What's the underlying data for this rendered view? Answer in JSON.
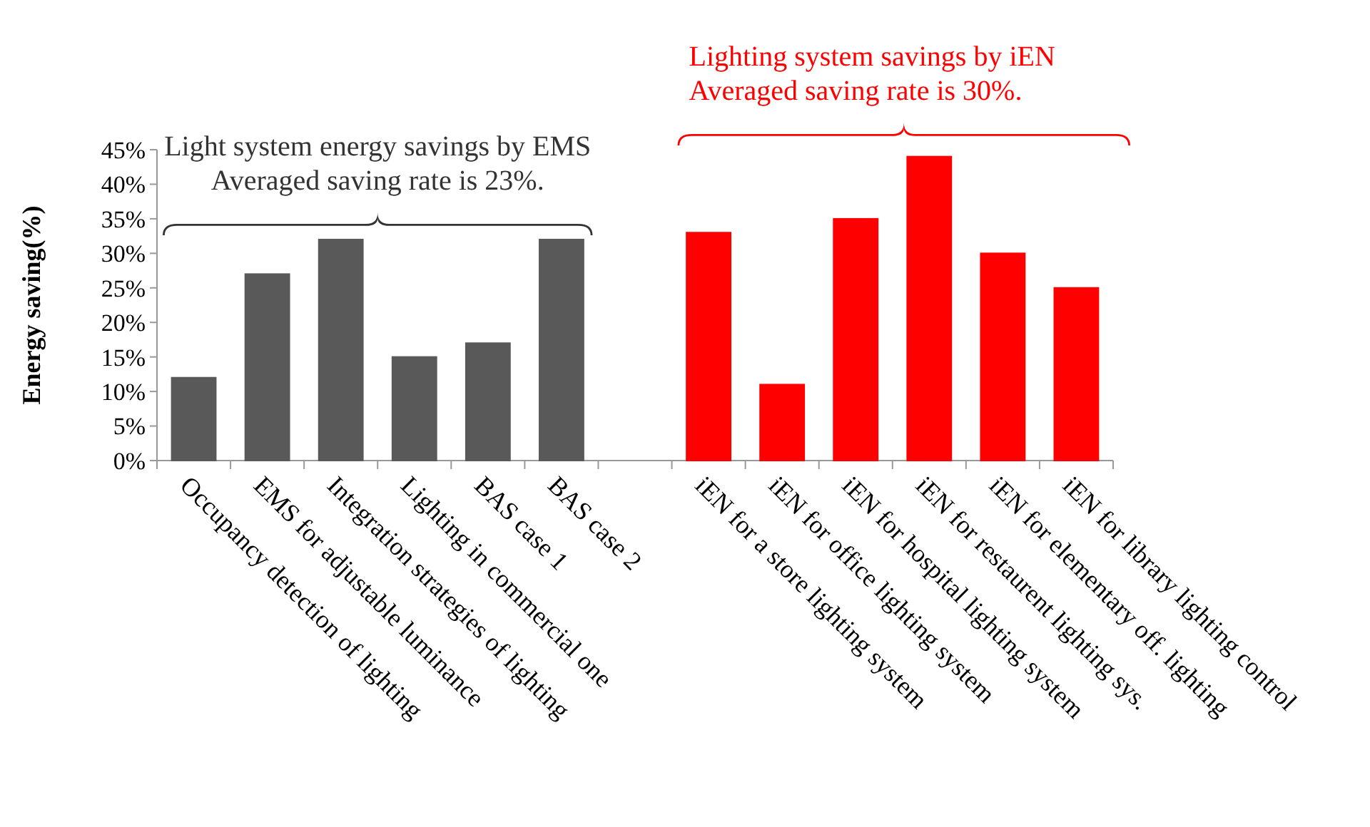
{
  "chart_data": {
    "type": "bar",
    "ylabel": "Energy saving(%)",
    "categories": [
      "Occupancy detection of lighting",
      "EMS for adjustable luminance",
      "Integration strategies of lighting",
      "Lighting in commercial one",
      "BAS case 1",
      "BAS case 2",
      null,
      "iEN for a store lighting system",
      "iEN for office lighting system",
      "iEN for hospital lighting system",
      "iEN for restaurent lighting sys.",
      "iEN for elementary off. lighting",
      "iEN for library lighting control"
    ],
    "values": [
      12,
      27,
      32,
      15,
      17,
      32,
      null,
      33,
      11,
      35,
      44,
      30,
      25
    ],
    "colors": [
      "#595959",
      "#595959",
      "#595959",
      "#595959",
      "#595959",
      "#595959",
      null,
      "#ff0000",
      "#ff0000",
      "#ff0000",
      "#ff0000",
      "#ff0000",
      "#ff0000"
    ],
    "ylim": [
      0,
      45
    ],
    "yticks": [
      {
        "value": 0,
        "label": "0%"
      },
      {
        "value": 5,
        "label": "5%"
      },
      {
        "value": 10,
        "label": "10%"
      },
      {
        "value": 15,
        "label": "15%"
      },
      {
        "value": 20,
        "label": "20%"
      },
      {
        "value": 25,
        "label": "25%"
      },
      {
        "value": 30,
        "label": "30%"
      },
      {
        "value": 35,
        "label": "35%"
      },
      {
        "value": 40,
        "label": "40%"
      },
      {
        "value": 45,
        "label": "45%"
      }
    ],
    "annotations": [
      "Light system energy savings by EMS",
      "Averaged saving rate is 23%.",
      "Lighting system savings by iEN",
      "Averaged saving rate is 30%."
    ]
  }
}
